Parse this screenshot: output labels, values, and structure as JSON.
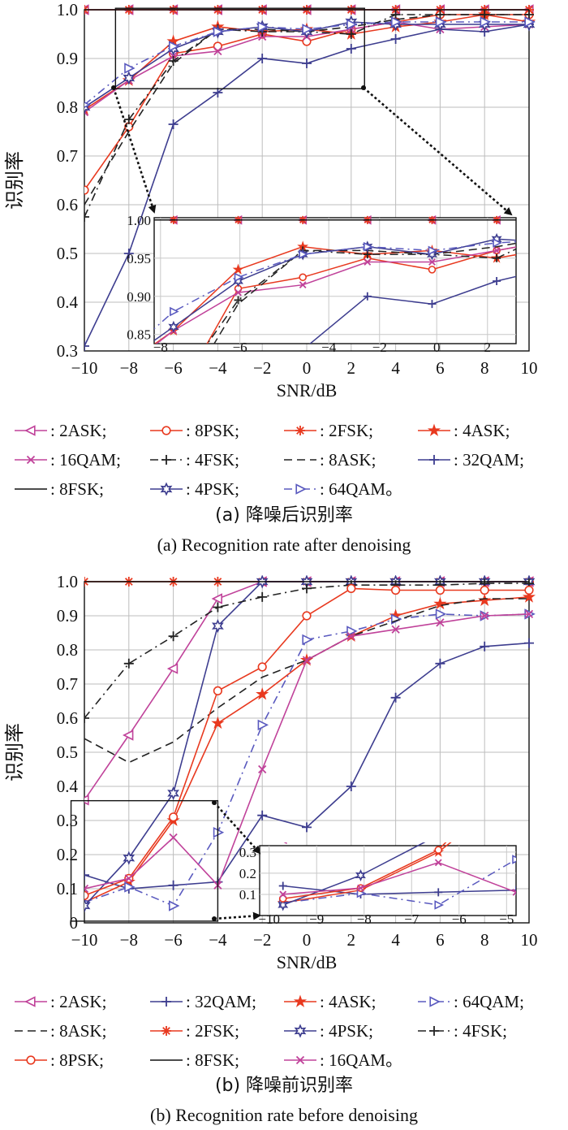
{
  "chart_data": [
    {
      "type": "line",
      "caption_cn": "(a) 降噪后识别率",
      "caption_en": "(a) Recognition rate after denoising",
      "xlabel": "SNR/dB",
      "ylabel": "识别率",
      "xlim": [
        -10,
        10
      ],
      "ylim": [
        0.3,
        1.0
      ],
      "xticks": [
        -10,
        -8,
        -6,
        -4,
        -2,
        0,
        2,
        4,
        6,
        8,
        10
      ],
      "yticks": [
        0.3,
        0.4,
        0.5,
        0.6,
        0.7,
        0.8,
        0.9,
        1.0
      ],
      "ytick_labels": [
        "0.3",
        "0.4",
        "0.5",
        "0.6",
        "0.7",
        "0.8",
        "0.9",
        "1.0"
      ],
      "grid": true,
      "legend_position": "below plot",
      "legend_end_mark": "。",
      "x": [
        -10,
        -8,
        -6,
        -4,
        -2,
        0,
        2,
        4,
        6,
        8,
        10
      ],
      "series": [
        {
          "name": "2ASK",
          "color": "#c0429a",
          "dash": "solid",
          "marker": "tri-left",
          "values": [
            1,
            1,
            1,
            1,
            1,
            1,
            1,
            1,
            1,
            1,
            1
          ]
        },
        {
          "name": "8PSK",
          "color": "#e8391f",
          "dash": "solid",
          "marker": "circle",
          "values": [
            0.63,
            0.76,
            0.91,
            0.925,
            0.95,
            0.935,
            0.96,
            0.975,
            0.99,
            0.99,
            0.99
          ]
        },
        {
          "name": "2FSK",
          "color": "#e8391f",
          "dash": "solid",
          "marker": "asterisk",
          "values": [
            1,
            1,
            1,
            1,
            1,
            1,
            1,
            1,
            1,
            1,
            1
          ]
        },
        {
          "name": "4ASK",
          "color": "#e8391f",
          "dash": "solid",
          "marker": "star",
          "values": [
            0.795,
            0.855,
            0.935,
            0.965,
            0.955,
            0.96,
            0.95,
            0.965,
            0.975,
            0.99,
            0.975
          ]
        },
        {
          "name": "16QAM",
          "color": "#c0429a",
          "dash": "solid",
          "marker": "x",
          "values": [
            0.79,
            0.855,
            0.905,
            0.915,
            0.945,
            0.945,
            0.96,
            0.975,
            0.96,
            0.965,
            0.97
          ]
        },
        {
          "name": "4FSK",
          "color": "#222222",
          "dash": "dashdot",
          "marker": "plus",
          "values": [
            0.575,
            0.775,
            0.895,
            0.96,
            0.955,
            0.955,
            0.95,
            0.99,
            0.99,
            0.99,
            0.99
          ]
        },
        {
          "name": "8ASK",
          "color": "#222222",
          "dash": "dashed",
          "marker": "none",
          "values": [
            0.6,
            0.75,
            0.89,
            0.96,
            0.96,
            0.955,
            0.965,
            0.98,
            0.99,
            0.99,
            0.99
          ]
        },
        {
          "name": "32QAM",
          "color": "#3d3d8f",
          "dash": "solid",
          "marker": "plus",
          "values": [
            0.31,
            0.5,
            0.765,
            0.83,
            0.9,
            0.89,
            0.92,
            0.94,
            0.96,
            0.955,
            0.97
          ]
        },
        {
          "name": "8FSK",
          "color": "#111111",
          "dash": "solid",
          "marker": "none",
          "values": [
            1,
            1,
            1,
            1,
            1,
            1,
            1,
            1,
            1,
            1,
            1
          ]
        },
        {
          "name": "4PSK",
          "color": "#3d3d8f",
          "dash": "solid",
          "marker": "hexstar",
          "values": [
            0.8,
            0.86,
            0.92,
            0.955,
            0.965,
            0.955,
            0.975,
            0.97,
            0.97,
            0.97,
            0.97
          ]
        },
        {
          "name": "64QAM",
          "color": "#5a5abf",
          "dash": "dashdot",
          "marker": "tri-right",
          "values": [
            0.805,
            0.88,
            0.925,
            0.955,
            0.965,
            0.96,
            0.97,
            0.975,
            0.975,
            0.975,
            0.975
          ]
        }
      ],
      "inset": {
        "zoom_xrange": [
          -8.6,
          2.6
        ],
        "zoom_yrange": [
          0.838,
          1.003
        ],
        "xticks": [
          -8,
          -6,
          -4,
          -2,
          0,
          2
        ],
        "xtick_values": [
          -8.5,
          -6,
          -3.2,
          -1.6,
          0.2,
          1.8
        ],
        "xlim": [
          -8.7,
          2.7
        ],
        "yticks": [
          0.85,
          0.9,
          0.95,
          1.0
        ],
        "ytick_labels": [
          "0.85",
          "0.90",
          "0.95",
          "1.00"
        ],
        "ylim": [
          0.838,
          1.003
        ]
      }
    },
    {
      "type": "line",
      "caption_cn": "(b) 降噪前识别率",
      "caption_en": "(b) Recognition rate before denoising",
      "xlabel": "SNR/dB",
      "ylabel": "识别率",
      "xlim": [
        -10,
        10
      ],
      "ylim": [
        0,
        1.0
      ],
      "xticks": [
        -10,
        -8,
        -6,
        -4,
        -2,
        0,
        2,
        4,
        6,
        8,
        10
      ],
      "yticks": [
        0,
        0.1,
        0.2,
        0.3,
        0.4,
        0.5,
        0.6,
        0.7,
        0.8,
        0.9,
        1.0
      ],
      "ytick_labels": [
        "0",
        "0.1",
        "0.2",
        "0.3",
        "0.4",
        "0.5",
        "0.6",
        "0.7",
        "0.8",
        "0.9",
        "1.0"
      ],
      "grid": true,
      "legend_position": "below plot",
      "legend_end_mark": "。",
      "x": [
        -10,
        -8,
        -6,
        -4,
        -2,
        0,
        2,
        4,
        6,
        8,
        10
      ],
      "series": [
        {
          "name": "2ASK",
          "color": "#c0429a",
          "dash": "solid",
          "marker": "tri-left",
          "values": [
            0.36,
            0.55,
            0.745,
            0.95,
            1,
            1,
            1,
            1,
            1,
            1,
            1
          ]
        },
        {
          "name": "32QAM",
          "color": "#3d3d8f",
          "dash": "solid",
          "marker": "plus",
          "values": [
            0.14,
            0.1,
            0.11,
            0.12,
            0.315,
            0.28,
            0.4,
            0.66,
            0.76,
            0.81,
            0.82
          ]
        },
        {
          "name": "4ASK",
          "color": "#e8391f",
          "dash": "solid",
          "marker": "star",
          "values": [
            0.06,
            0.12,
            0.3,
            0.585,
            0.67,
            0.77,
            0.84,
            0.9,
            0.935,
            0.945,
            0.955
          ]
        },
        {
          "name": "64QAM",
          "color": "#5a5abf",
          "dash": "dashdot",
          "marker": "tri-right",
          "values": [
            0.06,
            0.105,
            0.05,
            0.265,
            0.58,
            0.83,
            0.855,
            0.89,
            0.905,
            0.9,
            0.905
          ]
        },
        {
          "name": "8ASK",
          "color": "#222222",
          "dash": "dashed",
          "marker": "none",
          "values": [
            0.54,
            0.47,
            0.53,
            0.63,
            0.72,
            0.77,
            0.84,
            0.885,
            0.93,
            0.95,
            0.95
          ]
        },
        {
          "name": "2FSK",
          "color": "#e8391f",
          "dash": "solid",
          "marker": "asterisk",
          "values": [
            1,
            1,
            1,
            1,
            1,
            1,
            1,
            1,
            1,
            1,
            1
          ]
        },
        {
          "name": "4PSK",
          "color": "#3d3d8f",
          "dash": "solid",
          "marker": "hexstar",
          "values": [
            0.05,
            0.19,
            0.38,
            0.87,
            1,
            1,
            1,
            1,
            1,
            1,
            1
          ]
        },
        {
          "name": "4FSK",
          "color": "#222222",
          "dash": "dashdot",
          "marker": "plus",
          "values": [
            0.6,
            0.76,
            0.84,
            0.925,
            0.955,
            0.98,
            0.99,
            0.99,
            0.99,
            0.995,
            0.995
          ]
        },
        {
          "name": "8PSK",
          "color": "#e8391f",
          "dash": "solid",
          "marker": "circle",
          "values": [
            0.08,
            0.13,
            0.31,
            0.68,
            0.75,
            0.9,
            0.98,
            0.975,
            0.975,
            0.975,
            0.975
          ]
        },
        {
          "name": "8FSK",
          "color": "#111111",
          "dash": "solid",
          "marker": "none",
          "values": [
            1,
            1,
            1,
            1,
            1,
            1,
            1,
            1,
            1,
            1,
            1
          ]
        },
        {
          "name": "16QAM",
          "color": "#c0429a",
          "dash": "solid",
          "marker": "x",
          "values": [
            0.1,
            0.13,
            0.25,
            0.11,
            0.45,
            0.77,
            0.84,
            0.86,
            0.88,
            0.9,
            0.905
          ]
        }
      ],
      "inset": {
        "zoom_xrange": [
          -10.6,
          -4.0
        ],
        "zoom_yrange": [
          0.005,
          0.358
        ],
        "xticks": [
          -10,
          -9,
          -8,
          -7,
          -6,
          -5
        ],
        "xtick_values": [
          -10,
          -9,
          -8,
          -7,
          -6,
          -5
        ],
        "xlim": [
          -10.2,
          -4.8
        ],
        "yticks": [
          0.1,
          0.2,
          0.3
        ],
        "ytick_labels": [
          "0.1",
          "0.2",
          "0.3"
        ],
        "ylim": [
          0.0,
          0.33
        ]
      }
    }
  ],
  "legends": [
    [
      [
        "2ASK",
        "8PSK",
        "2FSK",
        "4ASK"
      ],
      [
        "16QAM",
        "4FSK",
        "8ASK",
        "32QAM"
      ],
      [
        "8FSK",
        "4PSK",
        "64QAM"
      ]
    ],
    [
      [
        "2ASK",
        "32QAM",
        "4ASK",
        "64QAM"
      ],
      [
        "8ASK",
        "2FSK",
        "4PSK",
        "4FSK"
      ],
      [
        "8PSK",
        "8FSK",
        "16QAM"
      ]
    ]
  ]
}
